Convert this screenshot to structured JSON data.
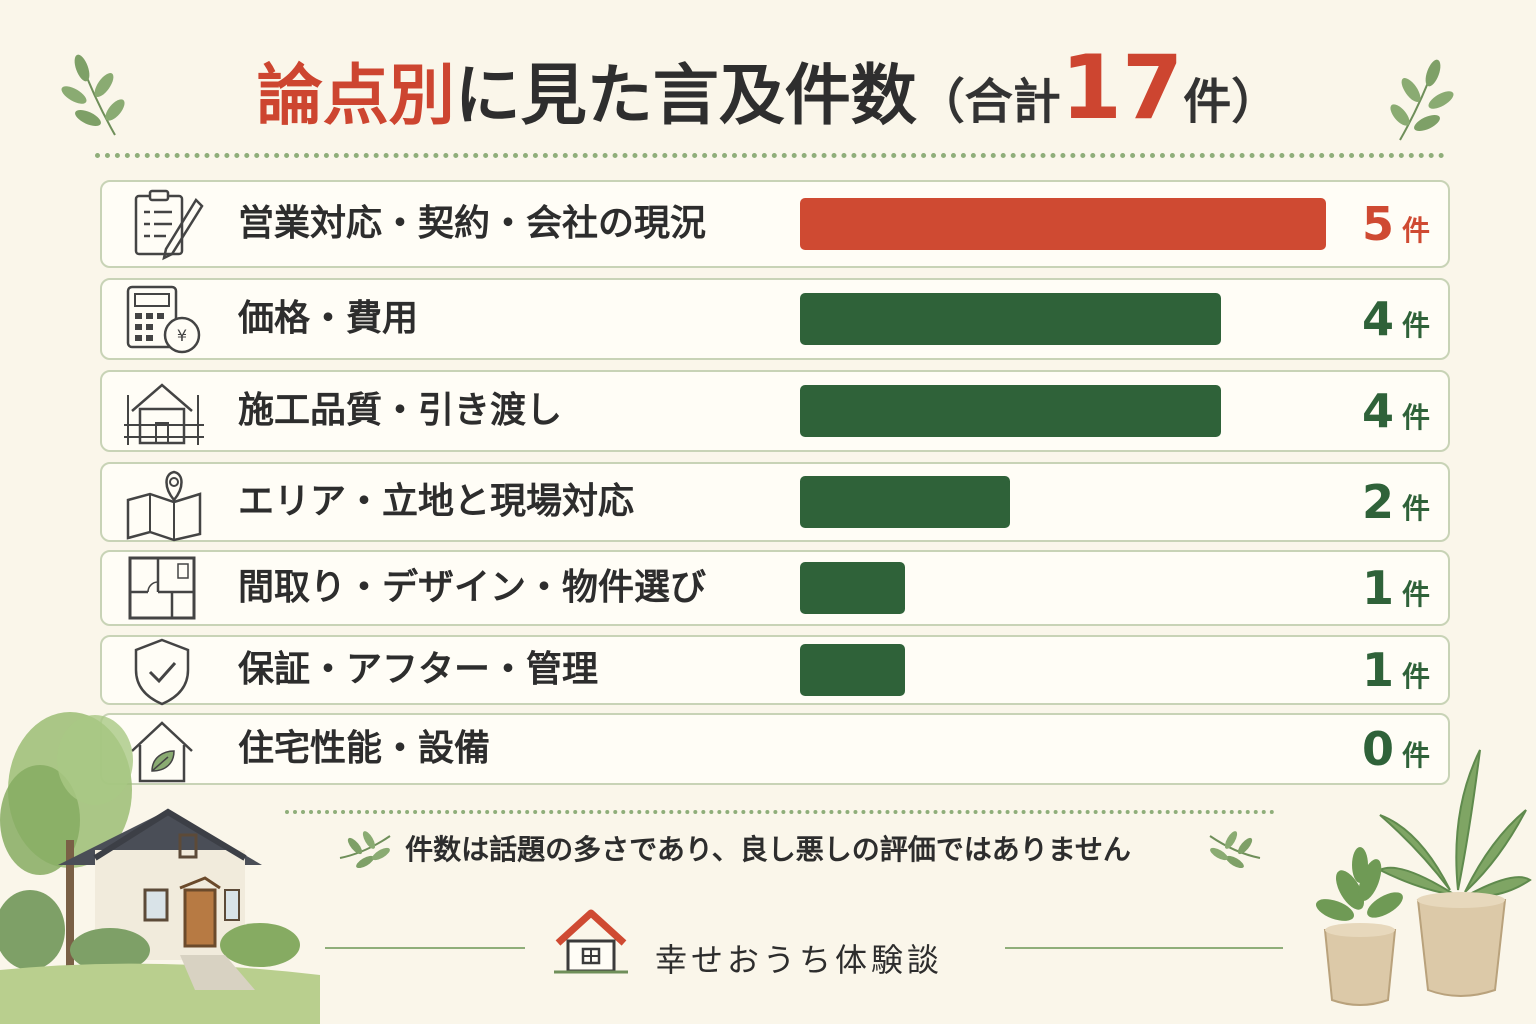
{
  "chart_data": {
    "type": "bar",
    "orientation": "horizontal",
    "title_parts": {
      "accent": "論点別",
      "main": "に見た言及件数",
      "paren_open": "（",
      "total_prefix": "合計",
      "total": "17",
      "total_unit": "件",
      "paren_close": "）"
    },
    "unit": "件",
    "categories": [
      "営業対応・契約・会社の現況",
      "価格・費用",
      "施工品質・引き渡し",
      "エリア・立地と現場対応",
      "間取り・デザイン・物件選び",
      "保証・アフター・管理",
      "住宅性能・設備"
    ],
    "values": [
      5,
      4,
      4,
      2,
      1,
      1,
      0
    ],
    "icons": [
      "clipboard-icon",
      "calculator-coin-icon",
      "house-frame-icon",
      "map-pin-icon",
      "floor-plan-icon",
      "shield-check-icon",
      "house-leaf-icon"
    ],
    "xlim": [
      0,
      5
    ],
    "highlight_color": "#cf4a32",
    "bar_color": "#2f6239",
    "grid": false,
    "legend": "none"
  },
  "footer": {
    "note": "件数は話題の多さであり、良し悪しの評価ではありません",
    "brand": "幸せおうち体験談"
  }
}
